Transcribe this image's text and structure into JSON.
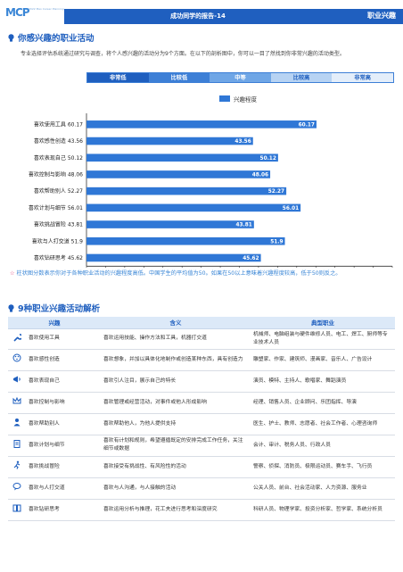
{
  "header": {
    "logo_text": "MCP",
    "logo_sub": "2022 Mao Career Planning",
    "title": "成功同学的报告-14",
    "right": "职业兴趣"
  },
  "section1": {
    "title": "你感兴趣的职业活动",
    "para": "专业选择评估系统通过研究与调查，将个人感兴趣的活动分为9个方面。在以下的剖析图中，你可以一目了然找到你非常兴趣的活动类型。"
  },
  "scale": [
    {
      "label": "非常低",
      "bg": "#1f5fbf",
      "fg": "#ffffff"
    },
    {
      "label": "比较低",
      "bg": "#3d7fd6",
      "fg": "#ffffff"
    },
    {
      "label": "中等",
      "bg": "#6fa6e6",
      "fg": "#ffffff"
    },
    {
      "label": "比较高",
      "bg": "#b7d3f3",
      "fg": "#1f5fbf"
    },
    {
      "label": "非常高",
      "bg": "#e4eefa",
      "fg": "#1f5fbf"
    }
  ],
  "chart_data": {
    "type": "bar",
    "orientation": "horizontal",
    "legend": "兴趣程度",
    "categories": [
      "喜欢使用工具 60.17",
      "喜欢感性创造 43.56",
      "喜欢表现自己 50.12",
      "喜欢控制与影响 48.06",
      "喜欢帮助别人 52.27",
      "喜欢计划与细节 56.01",
      "喜欢挑战冒险 43.81",
      "喜欢与人打交道 51.9",
      "喜欢钻研思考 45.62"
    ],
    "values": [
      60.17,
      43.56,
      50.12,
      48.06,
      52.27,
      56.01,
      43.81,
      51.9,
      45.62
    ],
    "xlim": [
      0,
      80
    ],
    "xticks": [
      0,
      5,
      10,
      15,
      20,
      25,
      30,
      35,
      40,
      45,
      50,
      55,
      60,
      65,
      70,
      75,
      80
    ],
    "color": "#2f77d6"
  },
  "note": {
    "star": "☆",
    "text": "柱状图分数表示你对于各种职业活动的兴趣程度高低。中国学生的平均值为50。如果在50以上意味着兴趣程度较高，低于50则反之。"
  },
  "section2": {
    "title": "9种职业兴趣活动解析"
  },
  "table": {
    "headers": [
      "兴趣",
      "含义",
      "典型职业"
    ],
    "rows": [
      {
        "icon": "wrench-icon",
        "name": "喜欢使用工具",
        "meaning": "喜欢运用技能、操作方法和工具，机器打交道",
        "jobs": "机械师、电脑组装与硬件维修人员、电工、焊工、厨师等专业技术人员"
      },
      {
        "icon": "palette-icon",
        "name": "喜欢感性创造",
        "meaning": "喜欢想象，并加以具体化地制作或创造某种东西，具有创造力",
        "jobs": "雕塑家、作家、建筑师、漫画家、音乐人、广告设计"
      },
      {
        "icon": "megaphone-icon",
        "name": "喜欢表现自己",
        "meaning": "喜欢引人注目，展示自己的特长",
        "jobs": "演员、模特、主持人、歌唱家、舞蹈演员"
      },
      {
        "icon": "crown-icon",
        "name": "喜欢控制与影响",
        "meaning": "喜欢管理或经营活动，对事件或他人形成影响",
        "jobs": "经理、销售人员、企业顾问、乐团指挥、导演"
      },
      {
        "icon": "helper-icon",
        "name": "喜欢帮助别人",
        "meaning": "喜欢帮助他人，为他人提供支持",
        "jobs": "医生、护士、教师、志愿者、社会工作者、心理咨询师"
      },
      {
        "icon": "clipboard-icon",
        "name": "喜欢计划与细节",
        "meaning": "喜欢有计划和规则，希望遵循既定的安排完成工作任务，关注细节或数据",
        "jobs": "会计、审计、税务人员、行政人员"
      },
      {
        "icon": "runner-icon",
        "name": "喜欢挑战冒险",
        "meaning": "喜欢接受有挑战性、有风险性的活动",
        "jobs": "警察、侦探、消防员、极限运动员、赛车手、飞行员"
      },
      {
        "icon": "chat-icon",
        "name": "喜欢与人打交道",
        "meaning": "喜欢与人沟通，与人接触的活动",
        "jobs": "公关人员、前台、社会活动家、人力资源、服务业"
      },
      {
        "icon": "book-icon",
        "name": "喜欢钻研思考",
        "meaning": "喜欢运用分析与推理，花工夫进行思考和深度研究",
        "jobs": "科研人员、物理学家、投资分析家、哲学家、系统分析员"
      }
    ]
  }
}
